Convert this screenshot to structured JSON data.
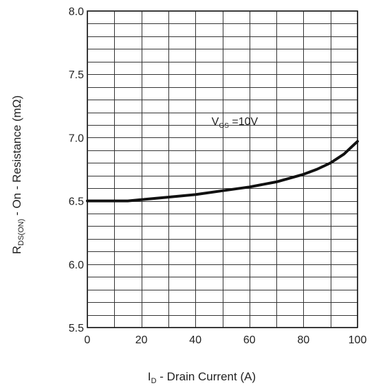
{
  "chart_data": {
    "type": "line",
    "xlabel_main": "I",
    "xlabel_sub": "D",
    "xlabel_rest": " - Drain Current (A)",
    "ylabel_main": "R",
    "ylabel_sub": "DS(ON)",
    "ylabel_rest": " - On - Resistance (mΩ)",
    "xlim": [
      0,
      100
    ],
    "ylim": [
      5.5,
      8.0
    ],
    "x_ticks": [
      0,
      20,
      40,
      60,
      80,
      100
    ],
    "x_tick_labels": [
      "0",
      "20",
      "40",
      "60",
      "80",
      "100"
    ],
    "x_minor_step": 10,
    "y_ticks": [
      5.5,
      6.0,
      6.5,
      7.0,
      7.5,
      8.0
    ],
    "y_tick_labels": [
      "5.5",
      "6.0",
      "6.5",
      "7.0",
      "7.5",
      "8.0"
    ],
    "y_minor_step": 0.1,
    "grid": true,
    "annotation": {
      "main": "V",
      "sub": "GS",
      "rest": " =10V",
      "x": 46,
      "y": 7.1
    },
    "series": [
      {
        "x": [
          0,
          5,
          10,
          15,
          20,
          30,
          40,
          50,
          60,
          70,
          80,
          85,
          90,
          95,
          100
        ],
        "y": [
          6.5,
          6.5,
          6.5,
          6.5,
          6.51,
          6.53,
          6.55,
          6.58,
          6.61,
          6.65,
          6.71,
          6.75,
          6.8,
          6.87,
          6.97
        ]
      }
    ]
  }
}
